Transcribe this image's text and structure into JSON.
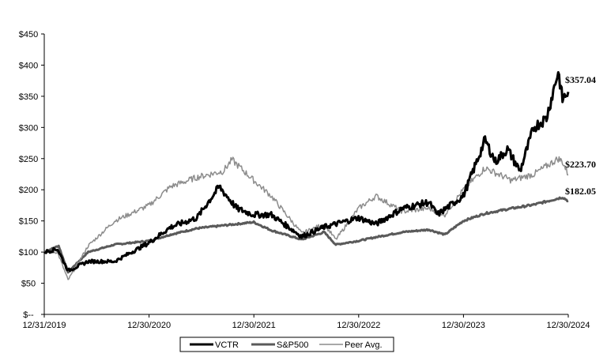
{
  "chart_data": {
    "type": "line",
    "title": "",
    "xlabel": "",
    "ylabel": "",
    "x_ticks": [
      "12/31/2019",
      "12/30/2020",
      "12/30/2021",
      "12/30/2022",
      "12/30/2023",
      "12/30/2024"
    ],
    "y_ticks": [
      "$--",
      "$50",
      "$100",
      "$150",
      "$200",
      "$250",
      "$300",
      "$350",
      "$400",
      "$450"
    ],
    "ylim": [
      0,
      450
    ],
    "xlim": [
      "2019-12-31",
      "2024-12-30"
    ],
    "grid": false,
    "legend_position": "bottom",
    "end_labels": [
      "$357.04",
      "$223.70",
      "$182.05"
    ],
    "series": [
      {
        "name": "VCTR",
        "color": "#000000",
        "x": [
          "2019-12-31",
          "2020-02-15",
          "2020-03-23",
          "2020-06-01",
          "2020-09-01",
          "2020-12-30",
          "2021-03-15",
          "2021-06-15",
          "2021-09-01",
          "2021-11-01",
          "2021-12-30",
          "2022-03-01",
          "2022-06-15",
          "2022-09-01",
          "2022-12-30",
          "2023-03-01",
          "2023-06-01",
          "2023-09-01",
          "2023-10-01",
          "2023-12-30",
          "2024-02-15",
          "2024-03-15",
          "2024-04-20",
          "2024-06-01",
          "2024-07-15",
          "2024-09-01",
          "2024-10-15",
          "2024-11-25",
          "2024-12-10",
          "2024-12-30"
        ],
        "values": [
          100,
          105,
          70,
          85,
          85,
          115,
          140,
          155,
          205,
          170,
          160,
          160,
          125,
          140,
          155,
          145,
          170,
          180,
          160,
          190,
          245,
          280,
          245,
          265,
          230,
          300,
          315,
          390,
          345,
          357.04
        ]
      },
      {
        "name": "S&P500",
        "color": "#5a5a5a",
        "x": [
          "2019-12-31",
          "2020-02-19",
          "2020-03-23",
          "2020-06-01",
          "2020-09-01",
          "2020-12-30",
          "2021-03-15",
          "2021-06-15",
          "2021-09-01",
          "2021-12-30",
          "2022-03-01",
          "2022-06-15",
          "2022-09-01",
          "2022-10-12",
          "2022-12-30",
          "2023-03-01",
          "2023-06-01",
          "2023-09-01",
          "2023-10-27",
          "2023-12-30",
          "2024-03-15",
          "2024-06-15",
          "2024-09-01",
          "2024-12-10",
          "2024-12-30"
        ],
        "values": [
          100,
          110,
          68,
          100,
          112,
          118,
          128,
          138,
          142,
          148,
          135,
          120,
          132,
          112,
          118,
          124,
          132,
          136,
          128,
          150,
          162,
          170,
          176,
          188,
          182.05
        ]
      },
      {
        "name": "Peer Avg.",
        "color": "#8c8c8c",
        "x": [
          "2019-12-31",
          "2020-02-15",
          "2020-03-23",
          "2020-06-01",
          "2020-09-01",
          "2020-12-30",
          "2021-03-15",
          "2021-06-15",
          "2021-09-15",
          "2021-10-15",
          "2021-12-30",
          "2022-03-01",
          "2022-06-15",
          "2022-09-01",
          "2022-10-12",
          "2022-12-30",
          "2023-03-01",
          "2023-06-01",
          "2023-09-01",
          "2023-10-27",
          "2023-12-30",
          "2024-03-15",
          "2024-06-15",
          "2024-09-01",
          "2024-11-25",
          "2024-12-10",
          "2024-12-30"
        ],
        "values": [
          100,
          100,
          55,
          110,
          150,
          175,
          205,
          220,
          230,
          248,
          215,
          190,
          130,
          145,
          120,
          170,
          190,
          165,
          170,
          160,
          200,
          235,
          215,
          225,
          250,
          245,
          223.7
        ]
      }
    ]
  }
}
